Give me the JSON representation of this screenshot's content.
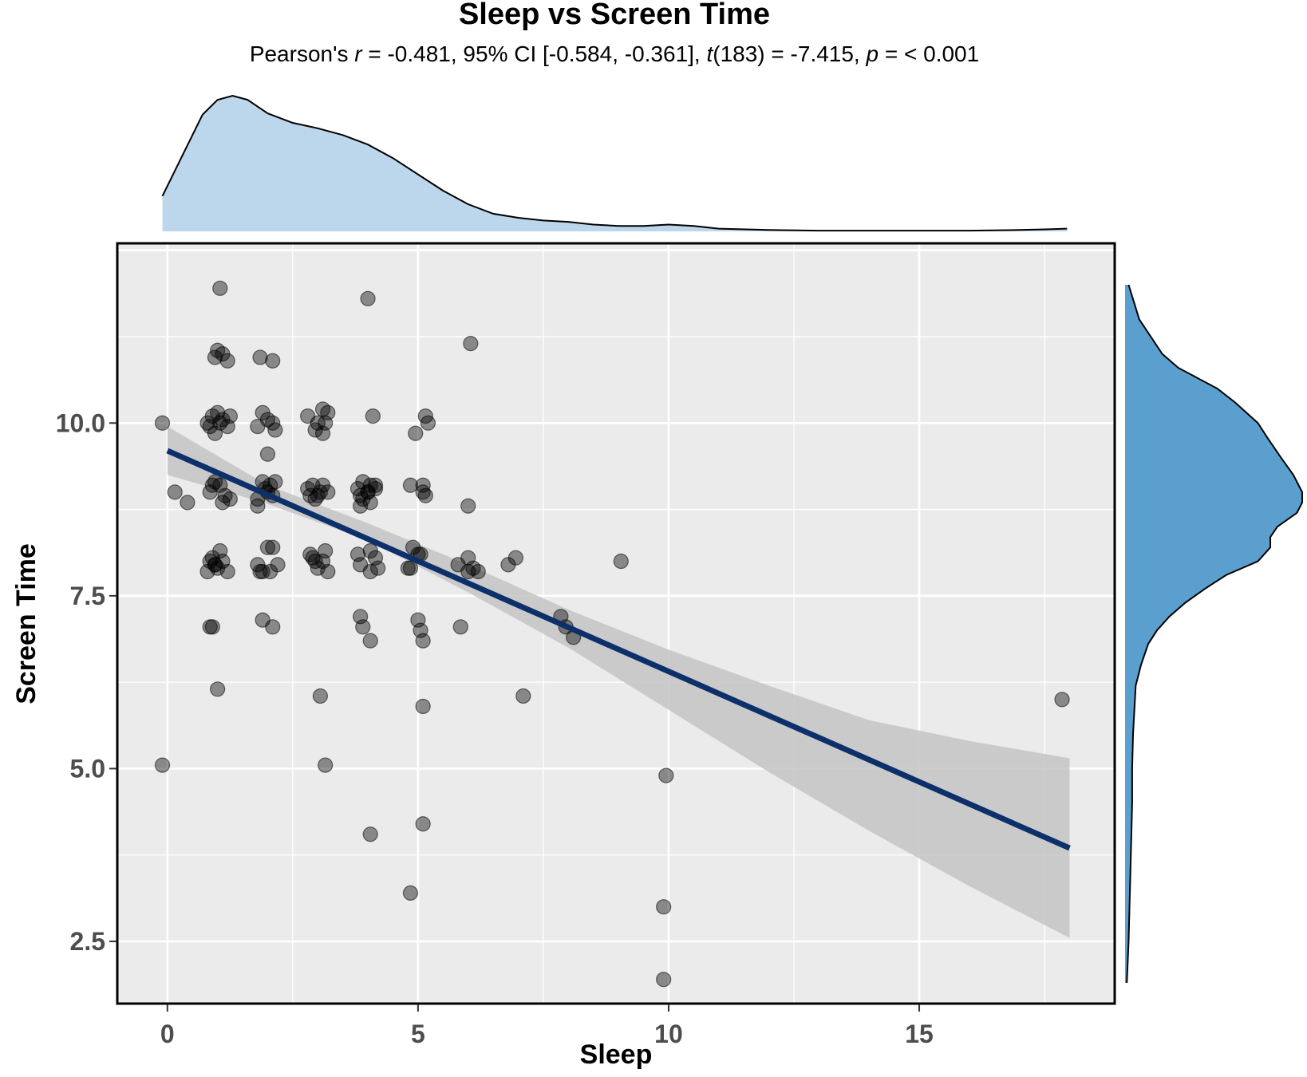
{
  "chart_data": {
    "type": "scatter",
    "title": "Sleep vs Screen Time",
    "subtitle": {
      "p1": "Pearson's ",
      "r": "r",
      "p2": " = -0.481, 95% CI [-0.584, -0.361], ",
      "t": "t",
      "p3": "(183) = -7.415, ",
      "p": "p",
      "p4": " = < 0.001"
    },
    "xlabel": "Sleep",
    "ylabel": "Screen Time",
    "xlim": [
      -1,
      18.9
    ],
    "ylim": [
      1.6,
      12.6
    ],
    "xticks": [
      0,
      5,
      10,
      15
    ],
    "xtick_labels": [
      "0",
      "5",
      "10",
      "15"
    ],
    "yticks": [
      2.5,
      5.0,
      7.5,
      10.0
    ],
    "ytick_labels": [
      "2.5",
      "5.0",
      "7.5",
      "10.0"
    ],
    "grid": true,
    "colors": {
      "panel": "#ebebeb",
      "points": "#000000",
      "fit_line": "#0d306b",
      "ci_band": "#c4c4c4",
      "x_density": "#bcd6eb",
      "y_density": "#5a9fcd"
    },
    "fit": {
      "x0": 0,
      "y0": 9.6,
      "x1": 18,
      "y1": 3.85
    },
    "ci_band": {
      "x": [
        0,
        2,
        4,
        6,
        8,
        10,
        12,
        14,
        16,
        18
      ],
      "lower": [
        9.25,
        8.83,
        8.3,
        7.55,
        6.75,
        5.85,
        4.95,
        4.1,
        3.3,
        2.55
      ],
      "upper": [
        9.95,
        9.1,
        8.55,
        7.95,
        7.3,
        6.72,
        6.2,
        5.7,
        5.4,
        5.15
      ]
    },
    "x_density": {
      "x": [
        -0.1,
        0.3,
        0.7,
        1.0,
        1.3,
        1.6,
        2.0,
        2.5,
        3.0,
        3.5,
        4.0,
        4.5,
        5.0,
        5.5,
        6.0,
        6.5,
        7.0,
        7.5,
        8.0,
        8.5,
        9.0,
        9.5,
        10.0,
        10.5,
        11.0,
        12.0,
        13.0,
        14.0,
        15.0,
        16.0,
        17.0,
        17.5,
        17.95
      ],
      "density": [
        0.26,
        0.56,
        0.86,
        0.97,
        1.0,
        0.97,
        0.87,
        0.8,
        0.76,
        0.71,
        0.64,
        0.54,
        0.42,
        0.3,
        0.2,
        0.13,
        0.1,
        0.08,
        0.07,
        0.05,
        0.04,
        0.04,
        0.05,
        0.04,
        0.02,
        0.01,
        0.005,
        0.005,
        0.005,
        0.005,
        0.01,
        0.015,
        0.02
      ]
    },
    "y_density": {
      "y": [
        12.0,
        11.5,
        11.0,
        10.8,
        10.5,
        10.3,
        10.0,
        9.8,
        9.5,
        9.25,
        9.0,
        8.85,
        8.7,
        8.5,
        8.35,
        8.2,
        8.0,
        7.8,
        7.6,
        7.4,
        7.2,
        7.0,
        6.8,
        6.5,
        6.2,
        5.5,
        5.0,
        4.5,
        4.0,
        3.5,
        3.0,
        2.5,
        1.9
      ],
      "density": [
        0.02,
        0.08,
        0.21,
        0.3,
        0.52,
        0.62,
        0.75,
        0.8,
        0.88,
        0.95,
        1.0,
        1.0,
        0.97,
        0.86,
        0.82,
        0.82,
        0.75,
        0.57,
        0.45,
        0.34,
        0.25,
        0.18,
        0.13,
        0.09,
        0.06,
        0.045,
        0.04,
        0.04,
        0.035,
        0.03,
        0.025,
        0.02,
        0.01
      ]
    },
    "points": [
      [
        1.05,
        11.95
      ],
      [
        4.0,
        11.8
      ],
      [
        6.05,
        11.15
      ],
      [
        1.0,
        11.05
      ],
      [
        1.1,
        11.0
      ],
      [
        1.2,
        10.9
      ],
      [
        0.95,
        10.95
      ],
      [
        1.85,
        10.95
      ],
      [
        2.1,
        10.9
      ],
      [
        -0.1,
        10.0
      ],
      [
        0.8,
        10.0
      ],
      [
        0.9,
        10.1
      ],
      [
        1.0,
        10.15
      ],
      [
        1.1,
        10.05
      ],
      [
        1.2,
        9.95
      ],
      [
        0.85,
        9.95
      ],
      [
        1.05,
        10.0
      ],
      [
        1.25,
        10.1
      ],
      [
        0.95,
        9.85
      ],
      [
        1.9,
        10.15
      ],
      [
        2.0,
        10.05
      ],
      [
        2.1,
        10.0
      ],
      [
        1.8,
        9.95
      ],
      [
        2.15,
        9.9
      ],
      [
        2.0,
        9.55
      ],
      [
        2.8,
        10.1
      ],
      [
        3.0,
        10.0
      ],
      [
        3.2,
        10.15
      ],
      [
        3.1,
        10.2
      ],
      [
        2.95,
        9.9
      ],
      [
        3.15,
        10.0
      ],
      [
        3.1,
        9.85
      ],
      [
        4.1,
        10.1
      ],
      [
        4.95,
        9.85
      ],
      [
        5.15,
        10.1
      ],
      [
        5.2,
        10.0
      ],
      [
        0.15,
        9.0
      ],
      [
        0.4,
        8.85
      ],
      [
        0.85,
        9.0
      ],
      [
        0.95,
        9.15
      ],
      [
        1.05,
        9.1
      ],
      [
        1.15,
        8.95
      ],
      [
        1.25,
        8.9
      ],
      [
        1.1,
        8.85
      ],
      [
        0.9,
        9.1
      ],
      [
        1.8,
        8.9
      ],
      [
        1.9,
        9.15
      ],
      [
        2.05,
        9.1
      ],
      [
        2.15,
        9.15
      ],
      [
        2.0,
        9.0
      ],
      [
        2.1,
        8.95
      ],
      [
        1.95,
        9.05
      ],
      [
        1.8,
        8.8
      ],
      [
        2.8,
        9.05
      ],
      [
        2.9,
        9.1
      ],
      [
        3.0,
        8.95
      ],
      [
        3.05,
        9.0
      ],
      [
        3.1,
        9.1
      ],
      [
        3.2,
        9.0
      ],
      [
        2.95,
        8.9
      ],
      [
        2.85,
        8.95
      ],
      [
        3.8,
        9.05
      ],
      [
        3.9,
        9.15
      ],
      [
        4.0,
        9.0
      ],
      [
        4.05,
        9.1
      ],
      [
        4.15,
        9.1
      ],
      [
        3.85,
        8.95
      ],
      [
        4.05,
        8.85
      ],
      [
        3.9,
        8.9
      ],
      [
        4.15,
        9.05
      ],
      [
        3.85,
        8.8
      ],
      [
        4.0,
        9.0
      ],
      [
        4.85,
        9.1
      ],
      [
        5.1,
        9.1
      ],
      [
        5.15,
        8.95
      ],
      [
        5.1,
        9.0
      ],
      [
        6.0,
        8.8
      ],
      [
        0.85,
        8.0
      ],
      [
        0.9,
        8.05
      ],
      [
        0.95,
        7.95
      ],
      [
        1.0,
        7.9
      ],
      [
        1.05,
        8.15
      ],
      [
        1.1,
        8.0
      ],
      [
        1.2,
        7.85
      ],
      [
        0.8,
        7.85
      ],
      [
        0.95,
        7.95
      ],
      [
        1.8,
        7.95
      ],
      [
        1.9,
        7.85
      ],
      [
        2.0,
        8.2
      ],
      [
        2.1,
        8.2
      ],
      [
        2.2,
        7.95
      ],
      [
        1.85,
        7.85
      ],
      [
        2.05,
        7.85
      ],
      [
        2.85,
        8.1
      ],
      [
        2.95,
        8.0
      ],
      [
        3.0,
        7.9
      ],
      [
        3.1,
        8.0
      ],
      [
        3.15,
        8.15
      ],
      [
        3.2,
        7.85
      ],
      [
        2.9,
        8.05
      ],
      [
        3.8,
        8.1
      ],
      [
        3.85,
        7.95
      ],
      [
        4.05,
        7.85
      ],
      [
        4.15,
        8.05
      ],
      [
        4.2,
        7.9
      ],
      [
        4.05,
        8.15
      ],
      [
        4.85,
        7.9
      ],
      [
        4.9,
        8.2
      ],
      [
        5.0,
        8.1
      ],
      [
        5.05,
        8.1
      ],
      [
        4.8,
        7.9
      ],
      [
        5.8,
        7.95
      ],
      [
        6.0,
        8.05
      ],
      [
        6.1,
        7.9
      ],
      [
        6.2,
        7.85
      ],
      [
        6.0,
        7.85
      ],
      [
        6.8,
        7.95
      ],
      [
        6.95,
        8.05
      ],
      [
        9.05,
        8.0
      ],
      [
        0.85,
        7.05
      ],
      [
        0.9,
        7.05
      ],
      [
        1.9,
        7.15
      ],
      [
        2.1,
        7.05
      ],
      [
        3.85,
        7.2
      ],
      [
        3.9,
        7.05
      ],
      [
        4.05,
        6.85
      ],
      [
        5.0,
        7.15
      ],
      [
        5.05,
        7.0
      ],
      [
        5.1,
        6.85
      ],
      [
        5.85,
        7.05
      ],
      [
        7.85,
        7.2
      ],
      [
        7.95,
        7.05
      ],
      [
        8.1,
        6.9
      ],
      [
        1.0,
        6.15
      ],
      [
        3.05,
        6.05
      ],
      [
        5.1,
        5.9
      ],
      [
        7.1,
        6.05
      ],
      [
        17.85,
        6.0
      ],
      [
        -0.1,
        5.05
      ],
      [
        3.15,
        5.05
      ],
      [
        9.95,
        4.9
      ],
      [
        4.05,
        4.05
      ],
      [
        5.1,
        4.2
      ],
      [
        4.85,
        3.2
      ],
      [
        9.9,
        3.0
      ],
      [
        9.9,
        1.95
      ]
    ]
  }
}
